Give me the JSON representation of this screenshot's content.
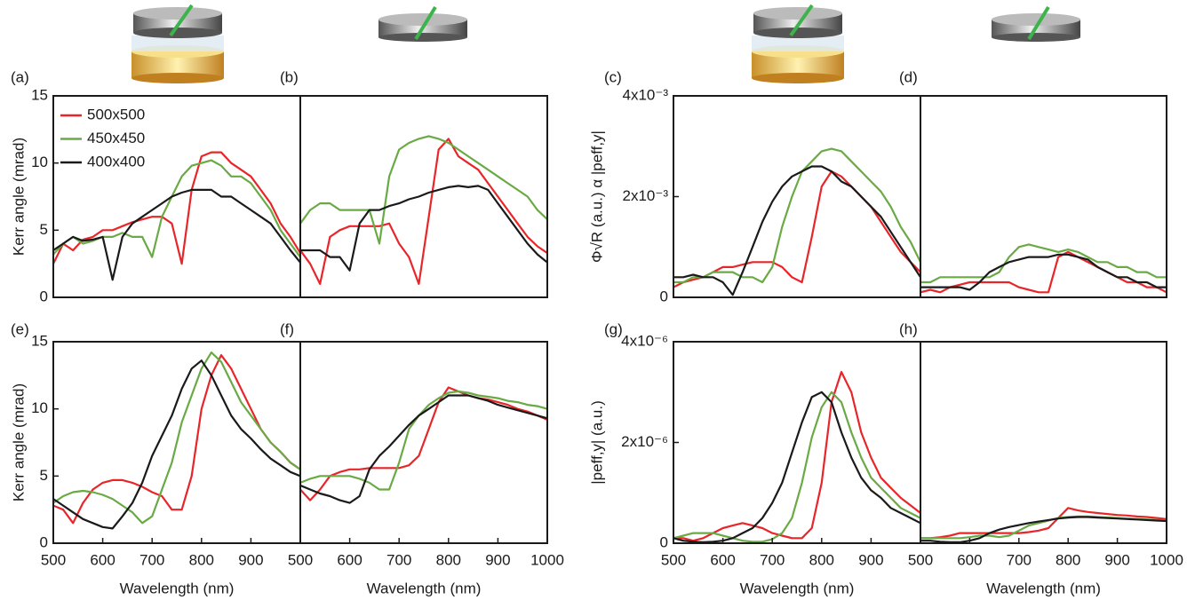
{
  "chart_data": [
    {
      "type": "line",
      "panel_label": "(a)",
      "ylabel": "Kerr angle (mrad)",
      "xlim": [
        500,
        1000
      ],
      "ylim": [
        0,
        15
      ],
      "yticks": [
        0,
        5,
        10,
        15
      ],
      "legend": "upper left",
      "x": [
        500,
        520,
        540,
        560,
        580,
        600,
        620,
        640,
        660,
        680,
        700,
        720,
        740,
        760,
        780,
        800,
        820,
        840,
        860,
        880,
        900,
        920,
        940,
        960,
        980,
        1000
      ],
      "series": [
        {
          "name": "500x500",
          "color": "#e8262a",
          "values": [
            2.5,
            4,
            3.5,
            4.3,
            4.5,
            5,
            5,
            5.3,
            5.6,
            5.8,
            6,
            6,
            5.5,
            2.5,
            8,
            10.5,
            10.8,
            10.8,
            10,
            9.5,
            9,
            8,
            7,
            5.5,
            4.5,
            3.3
          ]
        },
        {
          "name": "450x450",
          "color": "#6aaa45",
          "values": [
            3.2,
            4,
            4.5,
            4,
            4.2,
            4.5,
            4.5,
            4.8,
            4.5,
            4.5,
            3,
            6,
            7.5,
            9,
            9.8,
            10,
            10.2,
            9.8,
            9,
            9,
            8.5,
            7.5,
            6.5,
            5,
            4,
            3
          ]
        },
        {
          "name": "400x400",
          "color": "#1a1a1a",
          "values": [
            3.5,
            4,
            4.5,
            4.2,
            4.3,
            4.5,
            1.3,
            4.5,
            5.5,
            6,
            6.5,
            7,
            7.5,
            7.8,
            8,
            8,
            8,
            7.5,
            7.5,
            7,
            6.5,
            6,
            5.5,
            4.5,
            3.5,
            2.6
          ]
        }
      ]
    },
    {
      "type": "line",
      "panel_label": "(b)",
      "xlim": [
        500,
        1000
      ],
      "ylim": [
        0,
        15
      ],
      "x": [
        500,
        520,
        540,
        560,
        580,
        600,
        620,
        640,
        660,
        680,
        700,
        720,
        740,
        760,
        780,
        800,
        820,
        840,
        860,
        880,
        900,
        920,
        940,
        960,
        980,
        1000
      ],
      "series": [
        {
          "color": "#e8262a",
          "values": [
            3.5,
            2.5,
            1,
            4.5,
            5,
            5.3,
            5.3,
            5.3,
            5.3,
            5.5,
            4,
            3,
            1,
            6,
            11,
            11.8,
            10.5,
            10,
            9.5,
            8.5,
            7.5,
            6.5,
            5.5,
            4.5,
            3.8,
            3.3
          ]
        },
        {
          "color": "#6aaa45",
          "values": [
            5.5,
            6.5,
            7,
            7,
            6.5,
            6.5,
            6.5,
            6.5,
            4,
            9,
            11,
            11.5,
            11.8,
            12,
            11.8,
            11.5,
            11,
            10.5,
            10,
            9.5,
            9,
            8.5,
            8,
            7.5,
            6.5,
            5.8
          ]
        },
        {
          "color": "#1a1a1a",
          "values": [
            3.5,
            3.5,
            3.5,
            3,
            3,
            2,
            5.5,
            6.5,
            6.5,
            6.8,
            7,
            7.3,
            7.5,
            7.8,
            8,
            8.2,
            8.3,
            8.2,
            8.3,
            8,
            7,
            6,
            5,
            4,
            3.2,
            2.6
          ]
        }
      ]
    },
    {
      "type": "line",
      "panel_label": "(c)",
      "ylabel": "Φ√R (a.u.) α |peff,y|",
      "xlim": [
        500,
        1000
      ],
      "ylim": [
        0,
        0.004
      ],
      "yticks": [
        0,
        {
          "value": 0.002,
          "label": "2x10⁻³"
        },
        {
          "value": 0.004,
          "label": "4x10⁻³"
        }
      ],
      "x": [
        500,
        520,
        540,
        560,
        580,
        600,
        620,
        640,
        660,
        680,
        700,
        720,
        740,
        760,
        780,
        800,
        820,
        840,
        860,
        880,
        900,
        920,
        940,
        960,
        980,
        1000
      ],
      "series": [
        {
          "color": "#e8262a",
          "values": [
            0.0002,
            0.0003,
            0.00035,
            0.0004,
            0.0005,
            0.0006,
            0.0006,
            0.00065,
            0.0007,
            0.0007,
            0.0007,
            0.0006,
            0.0004,
            0.0003,
            0.0012,
            0.0022,
            0.0025,
            0.0024,
            0.0022,
            0.002,
            0.0018,
            0.0015,
            0.0012,
            0.0009,
            0.0007,
            0.0005
          ]
        },
        {
          "color": "#6aaa45",
          "values": [
            0.0003,
            0.0003,
            0.0004,
            0.0004,
            0.0005,
            0.0005,
            0.0005,
            0.0004,
            0.0004,
            0.0003,
            0.0006,
            0.0014,
            0.002,
            0.0025,
            0.0027,
            0.0029,
            0.00295,
            0.0029,
            0.0027,
            0.0025,
            0.0023,
            0.0021,
            0.0018,
            0.0014,
            0.0011,
            0.0007
          ]
        },
        {
          "color": "#1a1a1a",
          "values": [
            0.0004,
            0.0004,
            0.00045,
            0.0004,
            0.0004,
            0.0003,
            5e-05,
            0.0005,
            0.001,
            0.0015,
            0.0019,
            0.0022,
            0.0024,
            0.0025,
            0.0026,
            0.0026,
            0.0025,
            0.0023,
            0.0022,
            0.002,
            0.0018,
            0.0016,
            0.0013,
            0.001,
            0.0007,
            0.0004
          ]
        }
      ]
    },
    {
      "type": "line",
      "panel_label": "(d)",
      "xlim": [
        500,
        1000
      ],
      "ylim": [
        0,
        0.004
      ],
      "x": [
        500,
        520,
        540,
        560,
        580,
        600,
        620,
        640,
        660,
        680,
        700,
        720,
        740,
        760,
        780,
        800,
        820,
        840,
        860,
        880,
        900,
        920,
        940,
        960,
        980,
        1000
      ],
      "series": [
        {
          "color": "#e8262a",
          "values": [
            0.0001,
            0.00015,
            0.0001,
            0.0002,
            0.00025,
            0.0003,
            0.0003,
            0.0003,
            0.0003,
            0.0003,
            0.0002,
            0.00015,
            0.0001,
            0.0001,
            0.0008,
            0.0009,
            0.0008,
            0.0007,
            0.0006,
            0.0005,
            0.0004,
            0.0003,
            0.0003,
            0.0002,
            0.0002,
            0.0001
          ]
        },
        {
          "color": "#6aaa45",
          "values": [
            0.0003,
            0.0003,
            0.0004,
            0.0004,
            0.0004,
            0.0004,
            0.0004,
            0.0004,
            0.0005,
            0.0008,
            0.001,
            0.00105,
            0.001,
            0.00095,
            0.0009,
            0.00095,
            0.0009,
            0.0008,
            0.0007,
            0.0007,
            0.0006,
            0.0006,
            0.0005,
            0.0005,
            0.0004,
            0.0004
          ]
        },
        {
          "color": "#1a1a1a",
          "values": [
            0.0002,
            0.0002,
            0.0002,
            0.0002,
            0.0002,
            0.00015,
            0.0003,
            0.0005,
            0.0006,
            0.0007,
            0.00075,
            0.0008,
            0.0008,
            0.0008,
            0.00085,
            0.00085,
            0.0008,
            0.00075,
            0.0006,
            0.0005,
            0.0004,
            0.0004,
            0.0003,
            0.0003,
            0.0002,
            0.0002
          ]
        }
      ]
    },
    {
      "type": "line",
      "panel_label": "(e)",
      "ylabel": "Kerr angle (mrad)",
      "xlabel": "Wavelength (nm)",
      "xlim": [
        500,
        1000
      ],
      "ylim": [
        0,
        15
      ],
      "yticks": [
        0,
        5,
        10,
        15
      ],
      "xticks": [
        500,
        600,
        700,
        800,
        900
      ],
      "x": [
        500,
        520,
        540,
        560,
        580,
        600,
        620,
        640,
        660,
        680,
        700,
        720,
        740,
        760,
        780,
        800,
        820,
        840,
        860,
        880,
        900,
        920,
        940,
        960,
        980,
        1000
      ],
      "series": [
        {
          "color": "#e8262a",
          "values": [
            2.8,
            2.5,
            1.5,
            3,
            4,
            4.5,
            4.7,
            4.7,
            4.5,
            4.2,
            3.8,
            3.5,
            2.5,
            2.5,
            5,
            10,
            12.5,
            14,
            13,
            11.5,
            10,
            8.5,
            7.5,
            6.8,
            6,
            5.5
          ]
        },
        {
          "color": "#6aaa45",
          "values": [
            3,
            3.5,
            3.8,
            3.9,
            3.8,
            3.6,
            3.3,
            2.8,
            2.3,
            1.5,
            2,
            4,
            6,
            9,
            11,
            13,
            14.2,
            13.5,
            12,
            10.5,
            9.5,
            8.5,
            7.5,
            6.8,
            6,
            5.5
          ]
        },
        {
          "color": "#1a1a1a",
          "values": [
            3.3,
            2.8,
            2.3,
            1.8,
            1.5,
            1.2,
            1.1,
            2,
            3,
            4.5,
            6.5,
            8,
            9.5,
            11.5,
            13,
            13.6,
            12.5,
            11,
            9.5,
            8.5,
            7.8,
            7,
            6.3,
            5.8,
            5.3,
            5
          ]
        }
      ]
    },
    {
      "type": "line",
      "panel_label": "(f)",
      "xlabel": "Wavelength (nm)",
      "xlim": [
        500,
        1000
      ],
      "ylim": [
        0,
        15
      ],
      "xticks": [
        500,
        600,
        700,
        800,
        900,
        1000
      ],
      "x": [
        500,
        520,
        540,
        560,
        580,
        600,
        620,
        640,
        660,
        680,
        700,
        720,
        740,
        760,
        780,
        800,
        820,
        840,
        860,
        880,
        900,
        920,
        940,
        960,
        980,
        1000
      ],
      "series": [
        {
          "color": "#e8262a",
          "values": [
            4,
            3.2,
            4,
            5,
            5.3,
            5.5,
            5.5,
            5.6,
            5.6,
            5.6,
            5.6,
            5.8,
            6.5,
            8.5,
            10.5,
            11.6,
            11.3,
            11,
            10.8,
            10.7,
            10.5,
            10.3,
            10,
            9.8,
            9.5,
            9.2
          ]
        },
        {
          "color": "#6aaa45",
          "values": [
            4.5,
            4.8,
            5,
            5,
            5,
            5,
            4.8,
            4.5,
            4,
            4,
            6,
            8.5,
            9.5,
            10.3,
            10.8,
            11.2,
            11.3,
            11.2,
            11,
            10.9,
            10.8,
            10.6,
            10.5,
            10.3,
            10.2,
            10
          ]
        },
        {
          "color": "#1a1a1a",
          "values": [
            4.3,
            4,
            3.7,
            3.5,
            3.2,
            3,
            3.5,
            5.5,
            6.5,
            7.2,
            8,
            8.8,
            9.5,
            10,
            10.5,
            11,
            11,
            11,
            10.8,
            10.6,
            10.3,
            10.1,
            9.9,
            9.7,
            9.5,
            9.3
          ]
        }
      ]
    },
    {
      "type": "line",
      "panel_label": "(g)",
      "ylabel": "|peff,y| (a.u.)",
      "xlabel": "Wavelength (nm)",
      "xlim": [
        500,
        1000
      ],
      "ylim": [
        0,
        4e-06
      ],
      "yticks": [
        0,
        {
          "value": 2e-06,
          "label": "2x10⁻⁶"
        },
        {
          "value": 4e-06,
          "label": "4x10⁻⁶"
        }
      ],
      "xticks": [
        500,
        600,
        700,
        800,
        900
      ],
      "x": [
        500,
        520,
        540,
        560,
        580,
        600,
        620,
        640,
        660,
        680,
        700,
        720,
        740,
        760,
        780,
        800,
        820,
        840,
        860,
        880,
        900,
        920,
        940,
        960,
        980,
        1000
      ],
      "series": [
        {
          "color": "#e8262a",
          "values": [
            1e-07,
            1e-07,
            5e-08,
            1e-07,
            2e-07,
            3e-07,
            3.5e-07,
            4e-07,
            3.5e-07,
            3e-07,
            2e-07,
            1.5e-07,
            1e-07,
            1e-07,
            3e-07,
            1.2e-06,
            2.8e-06,
            3.4e-06,
            3e-06,
            2.2e-06,
            1.7e-06,
            1.3e-06,
            1.1e-06,
            9e-07,
            7.5e-07,
            6e-07
          ]
        },
        {
          "color": "#6aaa45",
          "values": [
            1e-07,
            1.5e-07,
            2e-07,
            2e-07,
            2e-07,
            1.5e-07,
            1e-07,
            5e-08,
            3e-08,
            3e-08,
            8e-08,
            2e-07,
            5e-07,
            1.2e-06,
            2.1e-06,
            2.7e-06,
            3e-06,
            2.8e-06,
            2.2e-06,
            1.7e-06,
            1.3e-06,
            1.1e-06,
            9e-07,
            7e-07,
            6e-07,
            5e-07
          ]
        },
        {
          "color": "#1a1a1a",
          "values": [
            1e-07,
            5e-08,
            3e-08,
            2e-08,
            3e-08,
            5e-08,
            1e-07,
            2e-07,
            3e-07,
            5e-07,
            8e-07,
            1.2e-06,
            1.8e-06,
            2.4e-06,
            2.9e-06,
            3e-06,
            2.8e-06,
            2.2e-06,
            1.7e-06,
            1.3e-06,
            1.05e-06,
            9e-07,
            7e-07,
            6e-07,
            5e-07,
            4e-07
          ]
        }
      ]
    },
    {
      "type": "line",
      "panel_label": "(h)",
      "xlabel": "Wavelength (nm)",
      "xlim": [
        500,
        1000
      ],
      "ylim": [
        0,
        4e-06
      ],
      "xticks": [
        500,
        600,
        700,
        800,
        900,
        1000
      ],
      "x": [
        500,
        520,
        540,
        560,
        580,
        600,
        620,
        640,
        660,
        680,
        700,
        720,
        740,
        760,
        780,
        800,
        820,
        840,
        860,
        880,
        900,
        920,
        940,
        960,
        980,
        1000
      ],
      "series": [
        {
          "color": "#e8262a",
          "values": [
            1e-07,
            1e-07,
            1.2e-07,
            1.5e-07,
            2e-07,
            2e-07,
            2e-07,
            2e-07,
            2e-07,
            2e-07,
            2e-07,
            2.2e-07,
            2.5e-07,
            3e-07,
            5e-07,
            7e-07,
            6.5e-07,
            6.2e-07,
            6e-07,
            5.8e-07,
            5.6e-07,
            5.5e-07,
            5.3e-07,
            5.2e-07,
            5e-07,
            4.8e-07
          ]
        },
        {
          "color": "#6aaa45",
          "values": [
            1e-07,
            1e-07,
            1e-07,
            1e-07,
            1e-07,
            1.2e-07,
            1.5e-07,
            1.5e-07,
            1.2e-07,
            1.5e-07,
            2.5e-07,
            3.5e-07,
            4e-07,
            4.5e-07,
            5e-07,
            5.2e-07,
            5.3e-07,
            5.3e-07,
            5.2e-07,
            5.1e-07,
            5e-07,
            4.9e-07,
            4.8e-07,
            4.7e-07,
            4.6e-07,
            4.5e-07
          ]
        },
        {
          "color": "#1a1a1a",
          "values": [
            5e-08,
            5e-08,
            3e-08,
            2e-08,
            2e-08,
            5e-08,
            1e-07,
            2e-07,
            2.7e-07,
            3.2e-07,
            3.6e-07,
            4e-07,
            4.3e-07,
            4.6e-07,
            4.9e-07,
            5.1e-07,
            5.2e-07,
            5.2e-07,
            5.1e-07,
            5e-07,
            4.9e-07,
            4.8e-07,
            4.7e-07,
            4.6e-07,
            4.5e-07,
            4.4e-07
          ]
        }
      ]
    }
  ]
}
